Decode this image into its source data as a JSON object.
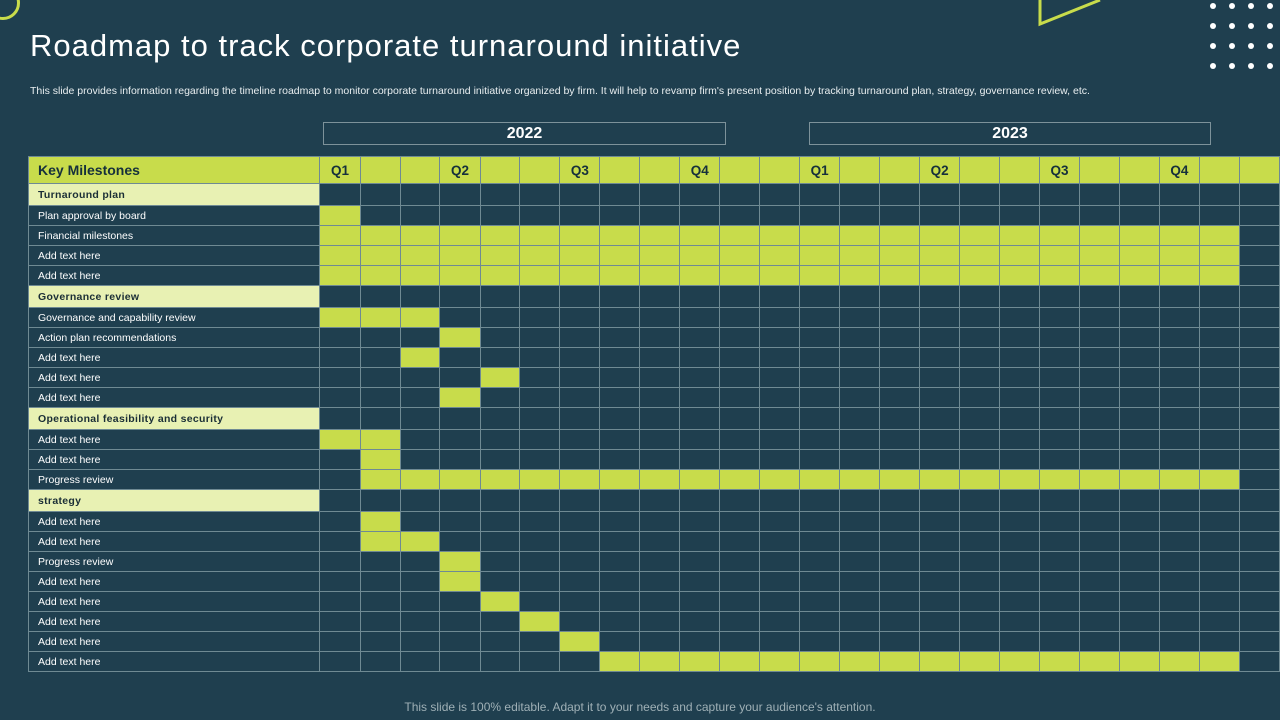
{
  "title": "Roadmap to track corporate turnaround initiative",
  "description": "This slide provides information regarding the timeline  roadmap to monitor corporate turnaround initiative organized by firm. It  will help to revamp firm's present position by tracking turnaround plan, strategy, governance review, etc.",
  "footer": "This slide is 100% editable. Adapt it to your needs and capture your audience's attention.",
  "colors": {
    "background": "#1f3f4f",
    "accent": "#c8dc4b",
    "category": "#e8f1b3",
    "grid": "#6f8a93"
  },
  "chart_data": {
    "type": "table",
    "title": "Roadmap to track corporate turnaround initiative",
    "years": [
      {
        "label": "2022",
        "start_column": 1,
        "end_column": 12
      },
      {
        "label": "2023",
        "start_column": 13,
        "end_column": 24
      }
    ],
    "header_label": "Key Milestones",
    "columns": [
      "Q1",
      "",
      "",
      "Q2",
      "",
      "",
      "Q3",
      "",
      "",
      "Q4",
      "",
      "",
      "Q1",
      "",
      "",
      "Q2",
      "",
      "",
      "Q3",
      "",
      "",
      "Q4",
      "",
      ""
    ],
    "rows": [
      {
        "label": "Turnaround plan",
        "category": true
      },
      {
        "label": "Plan approval by board",
        "bar": [
          1,
          1
        ]
      },
      {
        "label": "Financial milestones",
        "bar": [
          1,
          23
        ]
      },
      {
        "label": "Add text here",
        "bar": [
          1,
          23
        ]
      },
      {
        "label": "Add text here",
        "bar": [
          1,
          23
        ]
      },
      {
        "label": "Governance review",
        "category": true
      },
      {
        "label": "Governance and capability review",
        "bar": [
          1,
          3
        ]
      },
      {
        "label": "Action plan recommendations",
        "bar": [
          4,
          4
        ]
      },
      {
        "label": "Add text here",
        "bar": [
          3,
          3
        ]
      },
      {
        "label": "Add text here",
        "bar": [
          5,
          5
        ]
      },
      {
        "label": "Add text here",
        "bar": [
          4,
          4
        ]
      },
      {
        "label": "Operational feasibility  and security",
        "category": true
      },
      {
        "label": "Add text here",
        "bar": [
          1,
          2
        ]
      },
      {
        "label": "Add text here",
        "bar": [
          2,
          2
        ]
      },
      {
        "label": "Progress review",
        "bar": [
          2,
          23
        ]
      },
      {
        "label": "strategy",
        "category": true
      },
      {
        "label": "Add text here",
        "bar": [
          2,
          2
        ]
      },
      {
        "label": "Add text here",
        "bar": [
          2,
          3
        ]
      },
      {
        "label": "Progress review",
        "bar": [
          4,
          4
        ]
      },
      {
        "label": "Add text here",
        "bar": [
          4,
          4
        ]
      },
      {
        "label": "Add text here",
        "bar": [
          5,
          5
        ]
      },
      {
        "label": "Add text here",
        "bar": [
          6,
          6
        ]
      },
      {
        "label": "Add text here",
        "bar": [
          7,
          7
        ]
      },
      {
        "label": "Add text here",
        "bar": [
          8,
          23
        ]
      }
    ]
  }
}
